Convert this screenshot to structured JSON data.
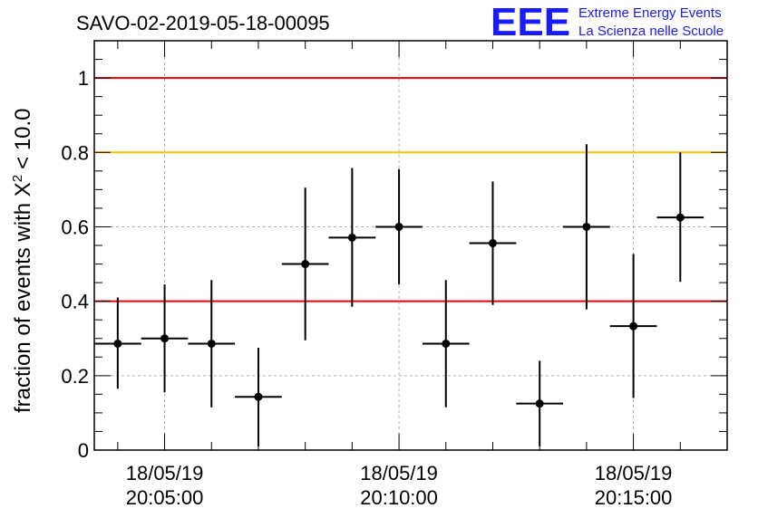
{
  "chart_data": {
    "type": "scatter",
    "title": "SAVO-02-2019-05-18-00095",
    "ylabel_main": "fraction of events with X",
    "ylabel_sup": "2",
    "ylabel_tail": "< 10.0",
    "ylim": [
      0,
      1.1
    ],
    "yticks": [
      "0",
      "0.2",
      "0.4",
      "0.6",
      "0.8",
      "1"
    ],
    "yticks_values": [
      0,
      0.2,
      0.4,
      0.6,
      0.8,
      1.0
    ],
    "xlim_minutes": [
      -1.0,
      11.85
    ],
    "xticks": [
      {
        "minute": 0,
        "line1": "18/05/19",
        "line2": "20:05:00"
      },
      {
        "minute": 5,
        "line1": "18/05/19",
        "line2": "20:10:00"
      },
      {
        "minute": 10,
        "line1": "18/05/19",
        "line2": "20:15:00"
      }
    ],
    "grid": true,
    "reference_lines": [
      {
        "y": 1.0,
        "color": "#e8000b"
      },
      {
        "y": 0.8,
        "color": "#ffc000"
      },
      {
        "y": 0.4,
        "color": "#e8000b"
      }
    ],
    "points": [
      {
        "x": -1.0,
        "xerr": 0.5,
        "y": 0.286,
        "y_lo": 0.165,
        "y_hi": 0.41
      },
      {
        "x": 0.0,
        "xerr": 0.5,
        "y": 0.3,
        "y_lo": 0.155,
        "y_hi": 0.445
      },
      {
        "x": 1.0,
        "xerr": 0.5,
        "y": 0.286,
        "y_lo": 0.115,
        "y_hi": 0.457
      },
      {
        "x": 2.0,
        "xerr": 0.5,
        "y": 0.143,
        "y_lo": 0.01,
        "y_hi": 0.275
      },
      {
        "x": 3.0,
        "xerr": 0.5,
        "y": 0.5,
        "y_lo": 0.295,
        "y_hi": 0.705
      },
      {
        "x": 4.0,
        "xerr": 0.5,
        "y": 0.571,
        "y_lo": 0.385,
        "y_hi": 0.758
      },
      {
        "x": 5.0,
        "xerr": 0.5,
        "y": 0.6,
        "y_lo": 0.445,
        "y_hi": 0.755
      },
      {
        "x": 6.0,
        "xerr": 0.5,
        "y": 0.286,
        "y_lo": 0.115,
        "y_hi": 0.457
      },
      {
        "x": 7.0,
        "xerr": 0.5,
        "y": 0.556,
        "y_lo": 0.39,
        "y_hi": 0.722
      },
      {
        "x": 8.0,
        "xerr": 0.5,
        "y": 0.125,
        "y_lo": 0.01,
        "y_hi": 0.24
      },
      {
        "x": 9.0,
        "xerr": 0.5,
        "y": 0.6,
        "y_lo": 0.378,
        "y_hi": 0.822
      },
      {
        "x": 10.0,
        "xerr": 0.5,
        "y": 0.333,
        "y_lo": 0.14,
        "y_hi": 0.527
      },
      {
        "x": 11.0,
        "xerr": 0.5,
        "y": 0.625,
        "y_lo": 0.452,
        "y_hi": 0.8
      }
    ]
  },
  "logo": {
    "letters": "EEE",
    "line1": "Extreme Energy Events",
    "line2": "La Scienza nelle Scuole",
    "color": "#1a1aff"
  }
}
